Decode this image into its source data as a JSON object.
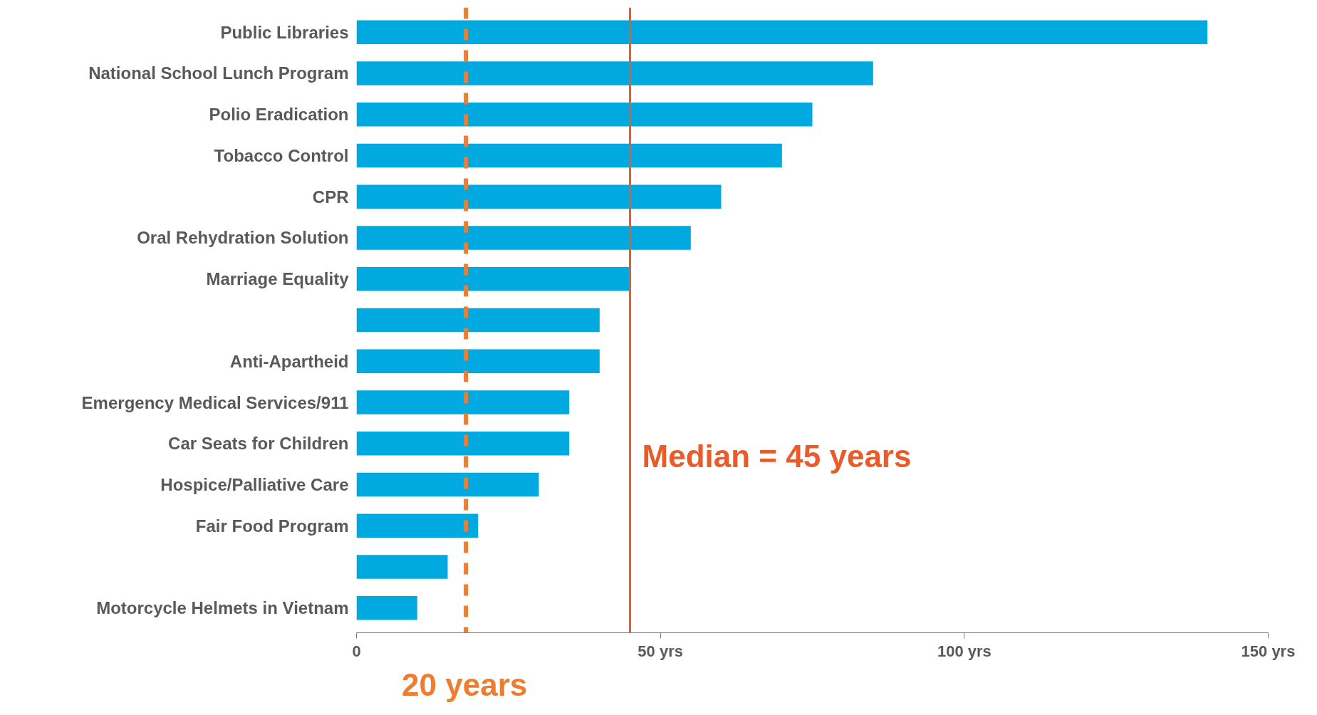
{
  "chart_data": {
    "type": "bar",
    "orientation": "horizontal",
    "categories": [
      "Public Libraries",
      "National School Lunch Program",
      "Polio Eradication",
      "Tobacco Control",
      "CPR",
      "Oral Rehydration Solution",
      "Marriage Equality",
      null,
      "Anti-Apartheid",
      "Emergency Medical Services/911",
      "Car Seats for Children",
      "Hospice/Palliative Care",
      "Fair Food Program",
      null,
      "Motorcycle Helmets in Vietnam"
    ],
    "values": [
      140,
      85,
      75,
      70,
      60,
      55,
      45,
      40,
      40,
      35,
      35,
      30,
      20,
      15,
      10
    ],
    "color": "#00a9e0",
    "xlim": [
      0,
      150
    ],
    "xticks": [
      0,
      {
        "value": 50,
        "label": "50 yrs"
      },
      {
        "value": 100,
        "label": "100 yrs"
      },
      {
        "value": 150,
        "label": "150 yrs"
      }
    ],
    "grid": false,
    "ref_lines": [
      {
        "axis": "x",
        "value": 45,
        "label": "Median = 45 years",
        "color": "#ea5b2a",
        "line_style": "solid"
      },
      {
        "axis": "x",
        "value": 18,
        "label": "20 years",
        "color": "#ee7d31",
        "line_style": "dashed"
      }
    ]
  }
}
